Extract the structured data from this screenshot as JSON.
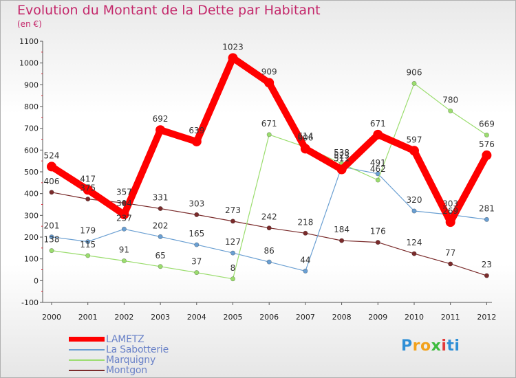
{
  "chart_data": {
    "type": "line",
    "title": "Evolution du Montant de la Dette par Habitant",
    "subtitle": "(en €)",
    "x": [
      "2000",
      "2001",
      "2002",
      "2003",
      "2004",
      "2005",
      "2006",
      "2007",
      "2008",
      "2009",
      "2010",
      "2011",
      "2012"
    ],
    "ylim": [
      -100,
      1100
    ],
    "yticks": [
      -100,
      0,
      100,
      200,
      300,
      400,
      500,
      600,
      700,
      800,
      900,
      1000,
      1100
    ],
    "grid": false,
    "legend_placement": "bottom-left",
    "series": [
      {
        "name": "LAMETZ",
        "color": "#ff0000",
        "values": [
          524,
          417,
          304,
          692,
          639,
          1023,
          909,
          606,
          511,
          671,
          597,
          269,
          576
        ],
        "labels": [
          "524",
          "417",
          "304",
          "692",
          "639",
          "1023",
          "909",
          "606",
          "511",
          "671",
          "597",
          "269",
          "576"
        ]
      },
      {
        "name": "La Sabotterie",
        "color": "#6a9fd2",
        "values": [
          201,
          179,
          237,
          202,
          165,
          127,
          86,
          44,
          523,
          491,
          320,
          303,
          281
        ],
        "labels": [
          "201",
          "179",
          "237",
          "202",
          "165",
          "127",
          "86",
          "44",
          "523",
          "491",
          "320",
          "303",
          "281"
        ]
      },
      {
        "name": "Marquigny",
        "color": "#9bdd6e",
        "values": [
          138,
          115,
          91,
          65,
          37,
          8,
          671,
          614,
          538,
          462,
          906,
          780,
          669
        ],
        "labels": [
          "138",
          "115",
          "91",
          "65",
          "37",
          "8",
          "671",
          "614",
          "538",
          "462",
          "906",
          "780",
          "669"
        ]
      },
      {
        "name": "Montgon",
        "color": "#7a2b2b",
        "values": [
          406,
          375,
          357,
          331,
          303,
          273,
          242,
          218,
          184,
          176,
          124,
          77,
          23
        ],
        "labels": [
          "406",
          "375",
          "357",
          "331",
          "303",
          "273",
          "242",
          "218",
          "184",
          "176",
          "124",
          "77",
          "23"
        ]
      }
    ]
  },
  "legend": {
    "items": [
      {
        "label": "LAMETZ",
        "color": "#ff0000"
      },
      {
        "label": "La Sabotterie",
        "color": "#6a9fd2"
      },
      {
        "label": "Marquigny",
        "color": "#9bdd6e"
      },
      {
        "label": "Montgon",
        "color": "#7a2b2b"
      }
    ]
  },
  "logo": {
    "letters": [
      "P",
      "r",
      "o",
      "x",
      "i",
      "ti"
    ]
  }
}
